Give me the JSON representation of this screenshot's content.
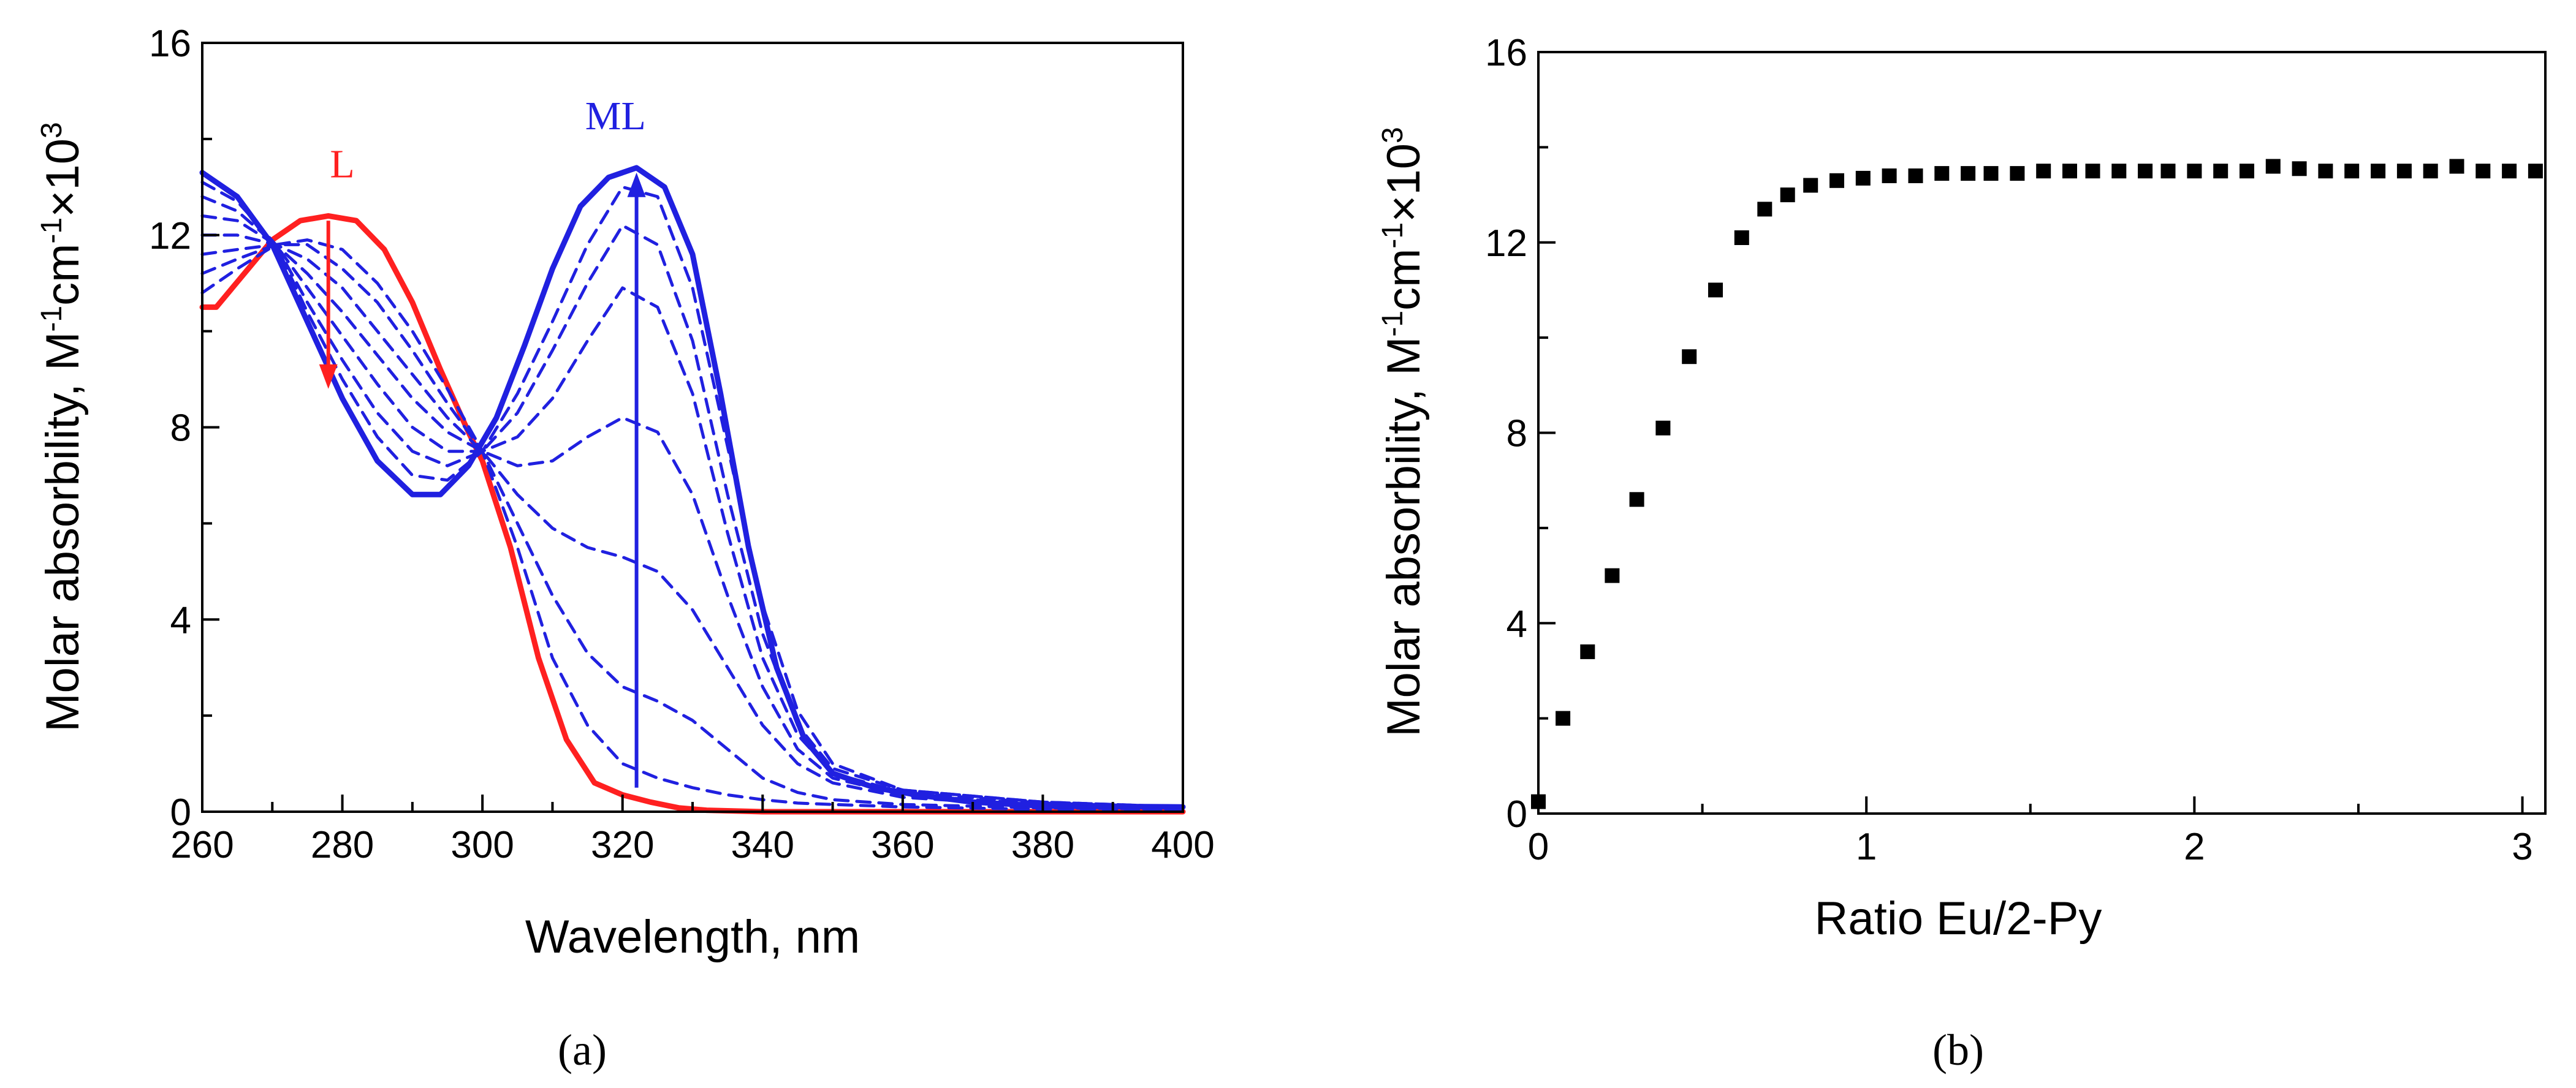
{
  "colors": {
    "ligand": "#ff2020",
    "complex": "#2020e0",
    "markers": "#000000",
    "axes": "#000000"
  },
  "chart_data": [
    {
      "type": "line",
      "panel_label": "(a)",
      "xlabel": "Wavelength, nm",
      "ylabel_prefix": "Molar absorbility, M",
      "ylabel_exp1": "-1",
      "ylabel_mid": "cm",
      "ylabel_exp2": "-1",
      "ylabel_mult": "×10",
      "ylabel_exp3": "3",
      "xlim": [
        260,
        400
      ],
      "ylim": [
        0,
        16
      ],
      "xticks": [
        260,
        280,
        300,
        320,
        340,
        360,
        380,
        400
      ],
      "yticks": [
        0,
        4,
        8,
        12,
        16
      ],
      "xtick_labels": [
        "260",
        "280",
        "300",
        "320",
        "340",
        "360",
        "380",
        "400"
      ],
      "ytick_labels": [
        "0",
        "4",
        "8",
        "12",
        "16"
      ],
      "annotations": [
        {
          "text": "L",
          "x": 280,
          "y": 13.2,
          "color": "#ff2020"
        },
        {
          "text": "ML",
          "x": 319,
          "y": 14.2,
          "color": "#2020e0"
        }
      ],
      "arrows": [
        {
          "name": "ligand-decrease-arrow",
          "from": [
            278,
            12.3
          ],
          "to": [
            278,
            8.8
          ],
          "color": "#ff2020"
        },
        {
          "name": "complex-increase-arrow",
          "from": [
            322,
            0.5
          ],
          "to": [
            322,
            13.3
          ],
          "color": "#2020e0"
        }
      ],
      "isosbestic_points": [
        [
          270.5,
          11.8
        ],
        [
          300,
          7.5
        ]
      ],
      "series": [
        {
          "name": "L",
          "color": "#ff2020",
          "style": "solid",
          "x": [
            260,
            262,
            266,
            270,
            274,
            278,
            282,
            286,
            290,
            294,
            298,
            300,
            304,
            308,
            312,
            316,
            320,
            324,
            328,
            332,
            340,
            400
          ],
          "y": [
            10.5,
            10.5,
            11.2,
            11.9,
            12.3,
            12.4,
            12.3,
            11.7,
            10.6,
            9.2,
            7.9,
            7.3,
            5.5,
            3.2,
            1.5,
            0.6,
            0.35,
            0.2,
            0.08,
            0.03,
            0.0,
            0.0
          ]
        },
        {
          "name": "ML",
          "color": "#2020e0",
          "style": "solid",
          "x": [
            260,
            265,
            270,
            275,
            280,
            285,
            290,
            294,
            298,
            302,
            306,
            310,
            314,
            318,
            322,
            326,
            330,
            334,
            338,
            342,
            346,
            350,
            356,
            362,
            370,
            380,
            400
          ],
          "y": [
            13.3,
            12.8,
            11.8,
            10.2,
            8.6,
            7.3,
            6.6,
            6.6,
            7.2,
            8.2,
            9.7,
            11.3,
            12.6,
            13.2,
            13.4,
            13.0,
            11.6,
            8.7,
            5.5,
            3.0,
            1.5,
            0.8,
            0.5,
            0.35,
            0.2,
            0.12,
            0.1
          ]
        },
        {
          "name": "titration-1",
          "color": "#2020e0",
          "style": "dashed",
          "x": [
            260,
            265,
            270.5,
            275,
            280,
            285,
            290,
            295,
            300,
            305,
            310,
            315,
            320,
            325,
            330,
            335,
            340,
            345,
            350,
            360,
            380,
            400
          ],
          "y": [
            10.8,
            11.3,
            11.8,
            11.9,
            11.7,
            11.0,
            10.0,
            8.8,
            7.5,
            5.5,
            3.2,
            1.8,
            1.0,
            0.7,
            0.5,
            0.35,
            0.25,
            0.18,
            0.15,
            0.1,
            0.05,
            0.05
          ]
        },
        {
          "name": "titration-2",
          "color": "#2020e0",
          "style": "dashed",
          "x": [
            260,
            265,
            270.5,
            275,
            280,
            285,
            290,
            295,
            300,
            305,
            310,
            315,
            320,
            325,
            330,
            335,
            340,
            345,
            350,
            360,
            380,
            400
          ],
          "y": [
            11.2,
            11.5,
            11.8,
            11.8,
            11.3,
            10.6,
            9.6,
            8.5,
            7.5,
            6.0,
            4.5,
            3.3,
            2.6,
            2.3,
            1.9,
            1.3,
            0.7,
            0.4,
            0.25,
            0.15,
            0.08,
            0.05
          ]
        },
        {
          "name": "titration-3",
          "color": "#2020e0",
          "style": "dashed",
          "x": [
            260,
            265,
            270.5,
            275,
            280,
            285,
            290,
            295,
            300,
            305,
            310,
            315,
            320,
            325,
            330,
            335,
            340,
            345,
            350,
            360,
            380,
            400
          ],
          "y": [
            11.6,
            11.7,
            11.8,
            11.5,
            10.9,
            10.0,
            9.1,
            8.2,
            7.5,
            6.6,
            5.9,
            5.5,
            5.3,
            5.0,
            4.2,
            3.0,
            1.8,
            1.0,
            0.6,
            0.3,
            0.12,
            0.08
          ]
        },
        {
          "name": "titration-4",
          "color": "#2020e0",
          "style": "dashed",
          "x": [
            260,
            265,
            270.5,
            275,
            280,
            285,
            290,
            295,
            300,
            305,
            310,
            315,
            320,
            325,
            330,
            335,
            340,
            345,
            350,
            360,
            380,
            400
          ],
          "y": [
            12.0,
            12.0,
            11.8,
            11.2,
            10.4,
            9.5,
            8.6,
            7.9,
            7.5,
            7.2,
            7.3,
            7.8,
            8.2,
            7.9,
            6.6,
            4.5,
            2.6,
            1.3,
            0.7,
            0.35,
            0.15,
            0.1
          ]
        },
        {
          "name": "titration-5",
          "color": "#2020e0",
          "style": "dashed",
          "x": [
            260,
            265,
            270.5,
            275,
            280,
            285,
            290,
            295,
            300,
            305,
            310,
            315,
            320,
            325,
            330,
            335,
            340,
            345,
            350,
            360,
            380,
            400
          ],
          "y": [
            12.4,
            12.3,
            11.8,
            10.9,
            9.9,
            8.9,
            8.0,
            7.5,
            7.5,
            7.8,
            8.6,
            9.8,
            10.9,
            10.5,
            8.7,
            5.8,
            3.2,
            1.6,
            0.8,
            0.4,
            0.18,
            0.1
          ]
        },
        {
          "name": "titration-6",
          "color": "#2020e0",
          "style": "dashed",
          "x": [
            260,
            265,
            270.5,
            275,
            280,
            285,
            290,
            295,
            300,
            305,
            310,
            315,
            320,
            325,
            330,
            335,
            340,
            345,
            350,
            360,
            380,
            400
          ],
          "y": [
            12.8,
            12.5,
            11.8,
            10.6,
            9.4,
            8.3,
            7.5,
            7.2,
            7.5,
            8.3,
            9.6,
            11.0,
            12.2,
            11.8,
            9.8,
            6.6,
            3.7,
            1.8,
            0.9,
            0.45,
            0.2,
            0.1
          ]
        },
        {
          "name": "titration-7",
          "color": "#2020e0",
          "style": "dashed",
          "x": [
            260,
            265,
            270.5,
            275,
            280,
            285,
            290,
            295,
            300,
            305,
            310,
            315,
            320,
            325,
            330,
            335,
            340,
            345,
            350,
            360,
            380,
            400
          ],
          "y": [
            13.1,
            12.7,
            11.8,
            10.4,
            9.0,
            7.8,
            7.0,
            6.9,
            7.5,
            8.7,
            10.2,
            11.8,
            13.0,
            12.8,
            10.9,
            7.6,
            4.3,
            2.1,
            1.0,
            0.45,
            0.2,
            0.1
          ]
        }
      ]
    },
    {
      "type": "scatter",
      "panel_label": "(b)",
      "xlabel": "Ratio Eu/2-Py",
      "ylabel_prefix": "Molar absorbility, M",
      "ylabel_exp1": "-1",
      "ylabel_mid": "cm",
      "ylabel_exp2": "-1",
      "ylabel_mult": "×10",
      "ylabel_exp3": "3",
      "xlim": [
        0,
        3.07
      ],
      "ylim": [
        0,
        16
      ],
      "xticks": [
        0,
        1,
        2,
        3
      ],
      "yticks": [
        0,
        4,
        8,
        12,
        16
      ],
      "xtick_labels": [
        "0",
        "1",
        "2",
        "3"
      ],
      "ytick_labels": [
        "0",
        "4",
        "8",
        "12",
        "16"
      ],
      "x": [
        0,
        0.075,
        0.15,
        0.225,
        0.3,
        0.38,
        0.46,
        0.54,
        0.62,
        0.69,
        0.76,
        0.83,
        0.91,
        0.99,
        1.07,
        1.15,
        1.23,
        1.31,
        1.38,
        1.46,
        1.54,
        1.62,
        1.69,
        1.77,
        1.85,
        1.92,
        2.0,
        2.08,
        2.16,
        2.24,
        2.32,
        2.4,
        2.48,
        2.56,
        2.64,
        2.72,
        2.8,
        2.88,
        2.96,
        3.04
      ],
      "y": [
        0.25,
        2.0,
        3.4,
        5.0,
        6.6,
        8.1,
        9.6,
        11.0,
        12.1,
        12.7,
        13.0,
        13.2,
        13.3,
        13.35,
        13.4,
        13.4,
        13.45,
        13.45,
        13.45,
        13.45,
        13.5,
        13.5,
        13.5,
        13.5,
        13.5,
        13.5,
        13.5,
        13.5,
        13.5,
        13.6,
        13.55,
        13.5,
        13.5,
        13.5,
        13.5,
        13.5,
        13.6,
        13.5,
        13.5,
        13.5
      ]
    }
  ]
}
